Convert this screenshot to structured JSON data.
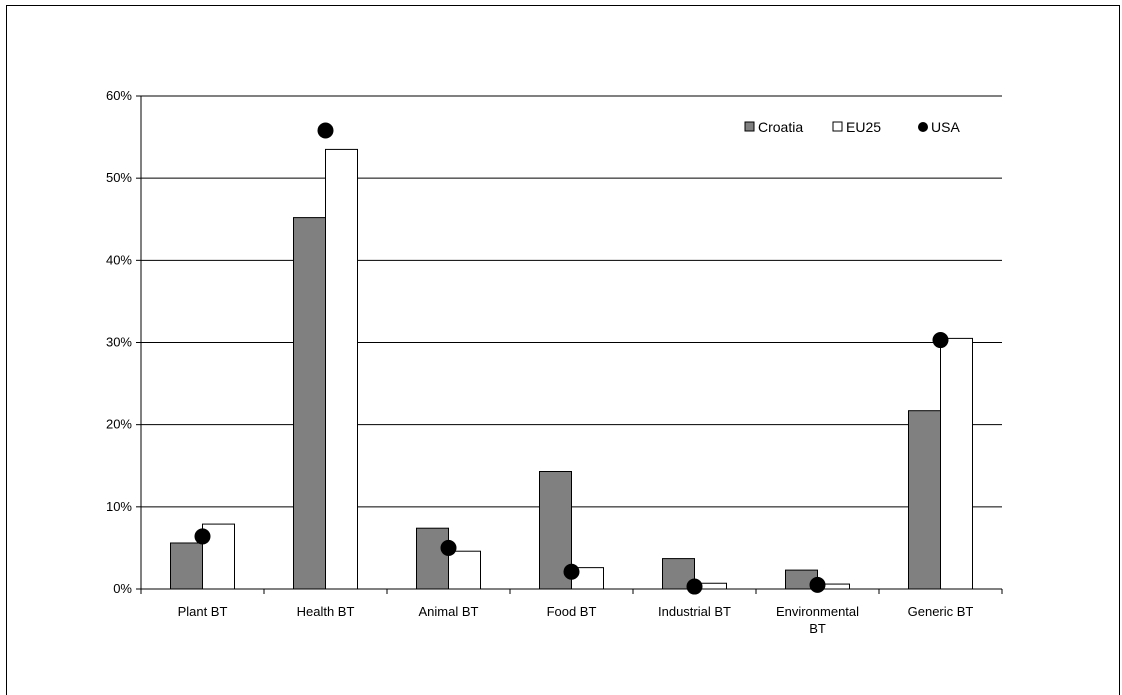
{
  "chart_data": {
    "type": "bar",
    "title": "",
    "xlabel": "",
    "ylabel": "",
    "categories": [
      [
        "Plant BT"
      ],
      [
        "Health BT"
      ],
      [
        "Animal BT"
      ],
      [
        "Food BT"
      ],
      [
        "Industrial BT"
      ],
      [
        "Environmental",
        "BT"
      ],
      [
        "Generic BT"
      ]
    ],
    "series": [
      {
        "name": "Croatia",
        "type": "bar",
        "color": "#808080",
        "values": [
          5.6,
          45.2,
          7.4,
          14.3,
          3.7,
          2.3,
          21.7
        ]
      },
      {
        "name": "EU25",
        "type": "bar",
        "color": "#ffffff",
        "values": [
          7.9,
          53.5,
          4.6,
          2.6,
          0.7,
          0.6,
          30.5
        ]
      },
      {
        "name": "USA",
        "type": "marker",
        "color": "#000000",
        "values": [
          6.4,
          55.8,
          5.0,
          2.1,
          0.3,
          0.5,
          30.3
        ]
      }
    ],
    "ylim": [
      0,
      60
    ],
    "yticks": [
      0,
      10,
      20,
      30,
      40,
      50,
      60
    ],
    "ytick_labels": [
      "0%",
      "10%",
      "20%",
      "30%",
      "40%",
      "50%",
      "60%"
    ],
    "grid": true,
    "legend_position": "top-right"
  }
}
